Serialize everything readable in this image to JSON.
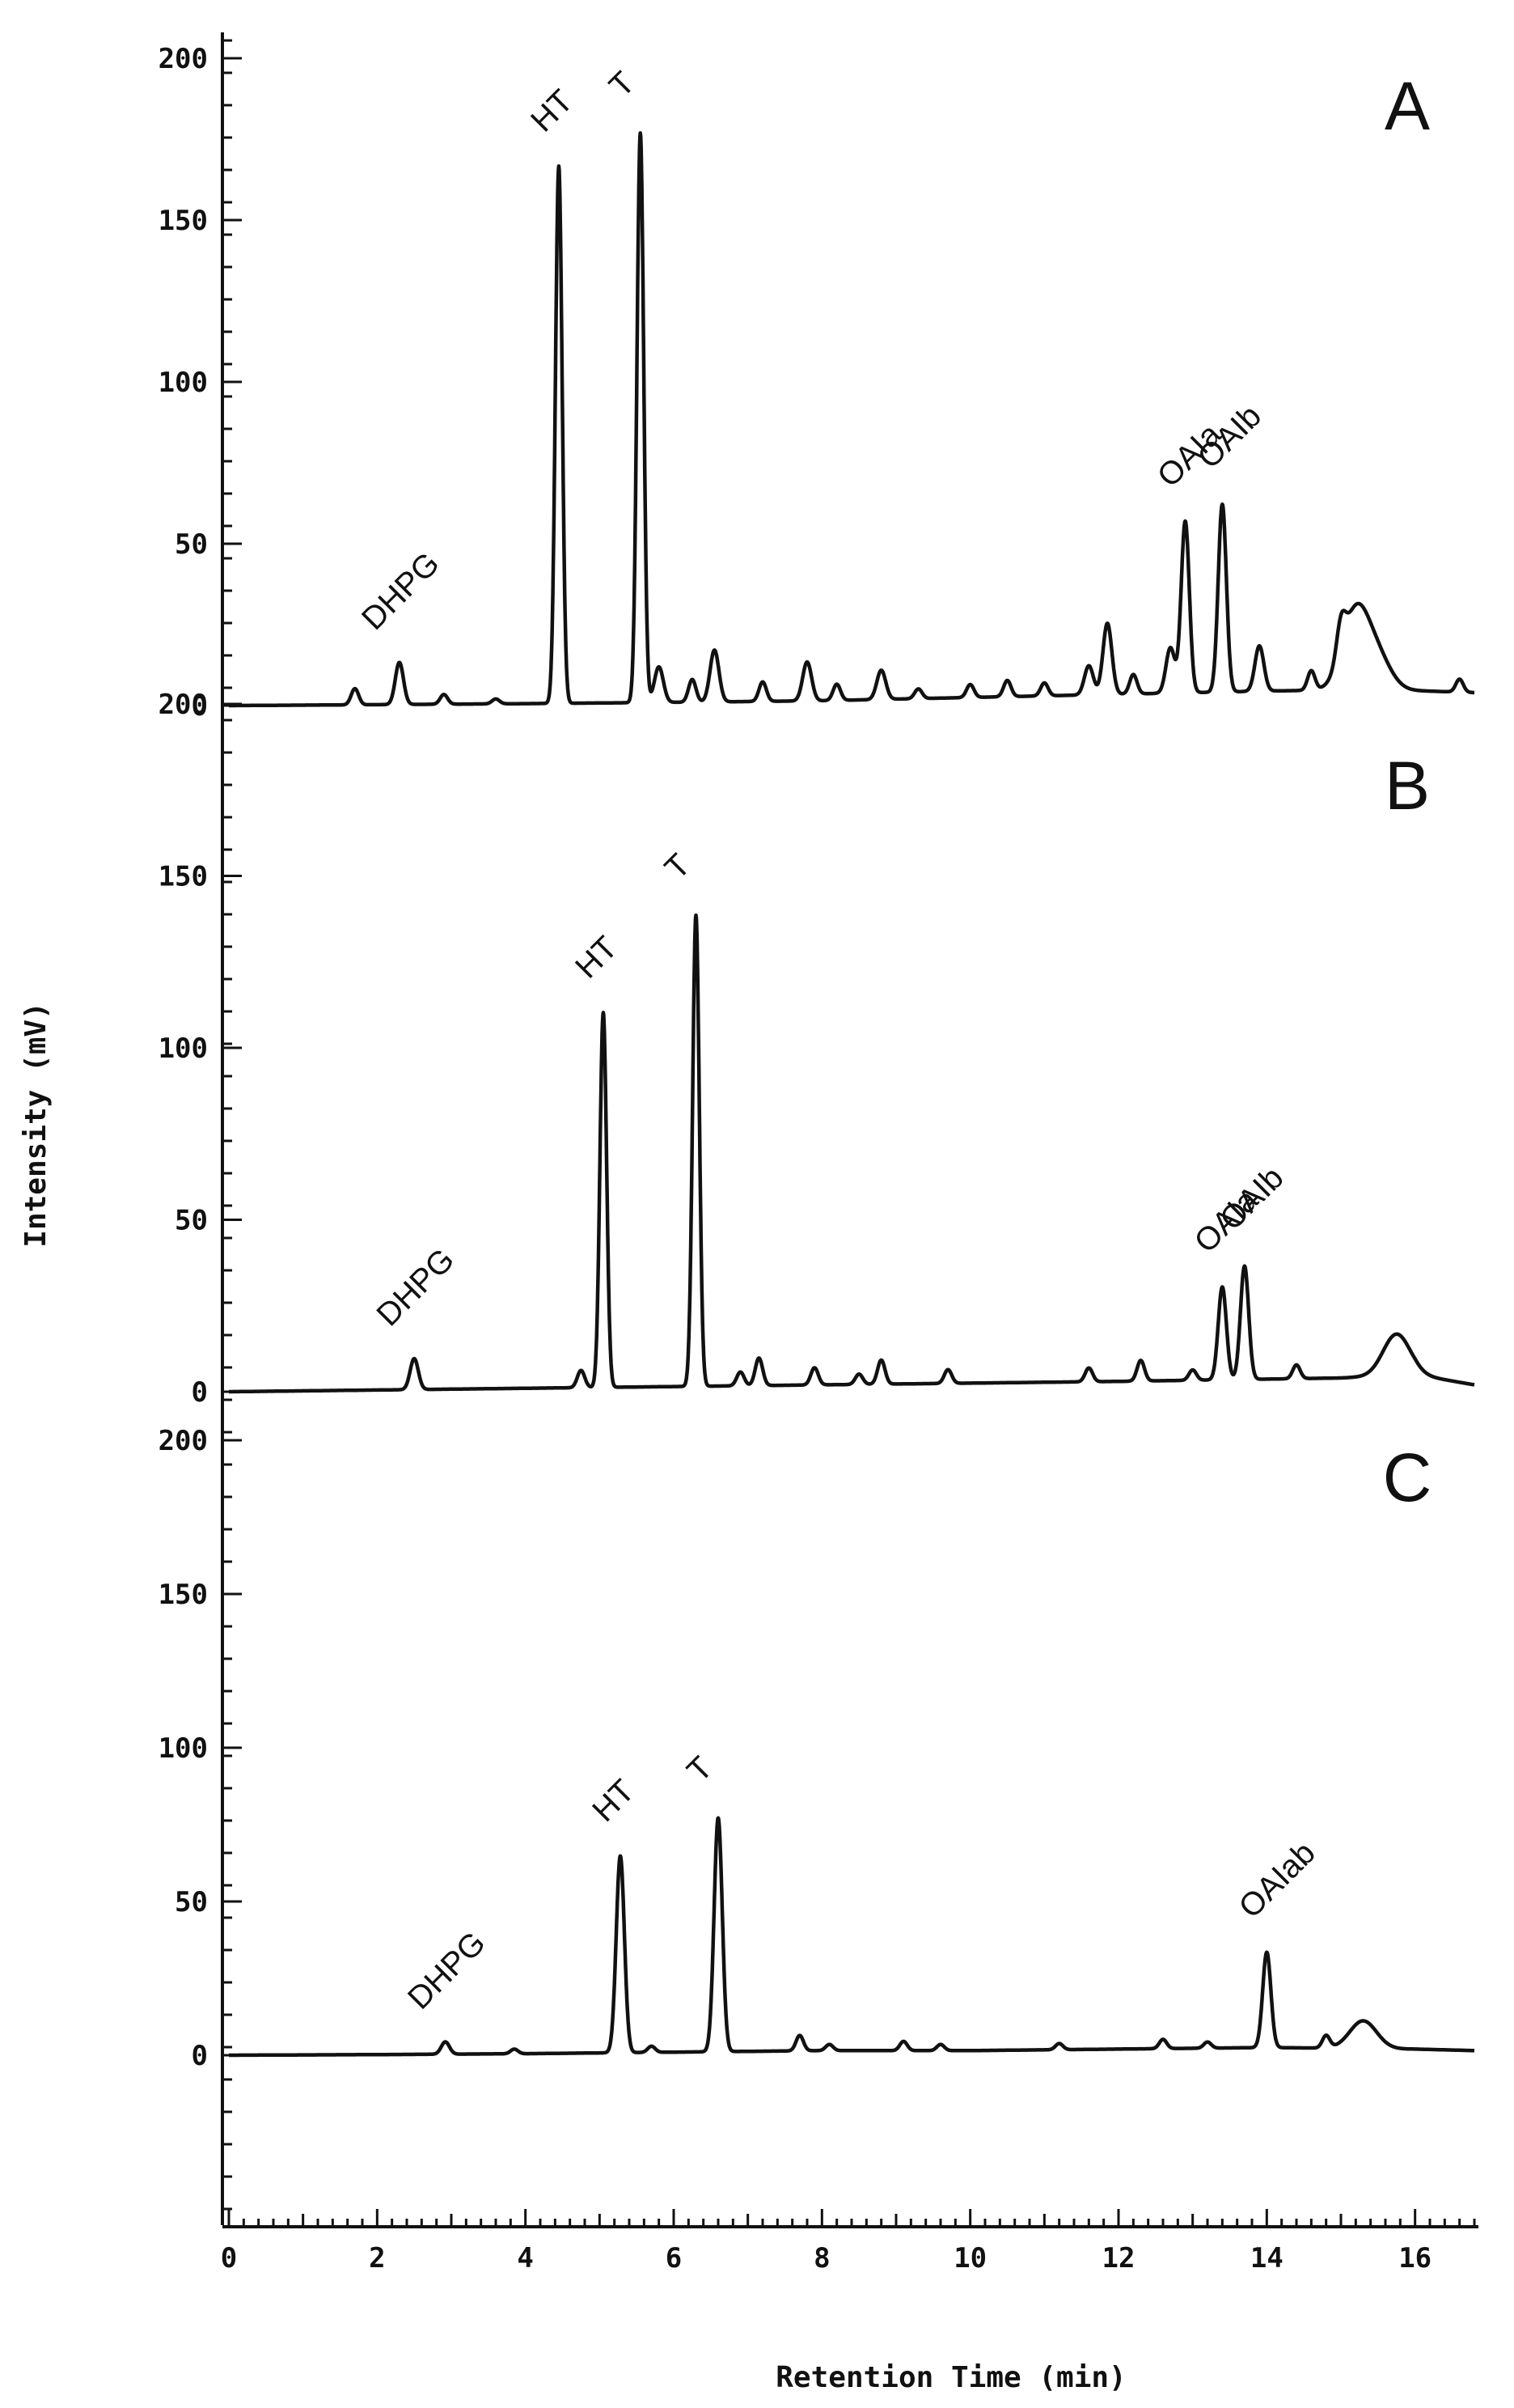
{
  "chart_data": {
    "type": "line",
    "xlabel": "Retention Time (min)",
    "ylabel": "Intensity (mV)",
    "xlim": [
      0,
      16.8
    ],
    "x_ticks": [
      "0",
      "2",
      "4",
      "6",
      "8",
      "10",
      "12",
      "14",
      "16"
    ],
    "y_ticks": [
      "0",
      "50",
      "100",
      "150",
      "200"
    ],
    "grid": false,
    "panels": [
      {
        "label": "A",
        "ylim": [
          0,
          200
        ],
        "baseline": [
          [
            0,
            0
          ],
          [
            1.5,
            0.2
          ],
          [
            4,
            0.6
          ],
          [
            6,
            1
          ],
          [
            8,
            1.5
          ],
          [
            10,
            2.5
          ],
          [
            12,
            3.5
          ],
          [
            14,
            4.5
          ],
          [
            15.5,
            5
          ],
          [
            16.8,
            4
          ]
        ],
        "peaks": [
          {
            "name": "DHPG",
            "rt": 2.3,
            "height": 13
          },
          {
            "name": "HT",
            "rt": 4.45,
            "height": 166
          },
          {
            "name": "T",
            "rt": 5.55,
            "height": 176
          },
          {
            "name": "OAIa",
            "rt": 12.9,
            "height": 53
          },
          {
            "name": "OAIb",
            "rt": 13.4,
            "height": 58
          }
        ],
        "minor_peaks": [
          [
            1.7,
            5
          ],
          [
            2.9,
            3
          ],
          [
            3.6,
            1.5
          ],
          [
            5.8,
            11
          ],
          [
            6.25,
            7
          ],
          [
            6.55,
            16
          ],
          [
            7.2,
            6
          ],
          [
            7.8,
            12
          ],
          [
            8.2,
            5
          ],
          [
            8.8,
            9
          ],
          [
            9.3,
            3
          ],
          [
            10.0,
            4
          ],
          [
            10.5,
            5
          ],
          [
            11.0,
            4
          ],
          [
            11.6,
            9
          ],
          [
            11.85,
            22
          ],
          [
            12.2,
            6
          ],
          [
            12.7,
            14
          ],
          [
            13.9,
            14
          ],
          [
            14.6,
            6
          ],
          [
            15.0,
            10
          ],
          [
            15.2,
            24
          ],
          [
            15.5,
            9
          ],
          [
            16.6,
            4
          ]
        ]
      },
      {
        "label": "B",
        "ylim": [
          0,
          200
        ],
        "baseline": [
          [
            0,
            0
          ],
          [
            1.2,
            0.3
          ],
          [
            4,
            1
          ],
          [
            6,
            1.5
          ],
          [
            8,
            2
          ],
          [
            10,
            2.5
          ],
          [
            12,
            3
          ],
          [
            13.5,
            3.5
          ],
          [
            15,
            4
          ],
          [
            16,
            5
          ],
          [
            16.8,
            2
          ]
        ],
        "peaks": [
          {
            "name": "DHPG",
            "rt": 2.5,
            "height": 9
          },
          {
            "name": "HT",
            "rt": 5.05,
            "height": 109
          },
          {
            "name": "T",
            "rt": 6.3,
            "height": 137
          },
          {
            "name": "OAIa",
            "rt": 13.4,
            "height": 27
          },
          {
            "name": "OAIb",
            "rt": 13.7,
            "height": 33
          }
        ],
        "minor_peaks": [
          [
            4.75,
            5
          ],
          [
            6.9,
            4
          ],
          [
            7.15,
            8
          ],
          [
            7.9,
            5
          ],
          [
            8.5,
            3
          ],
          [
            8.8,
            7
          ],
          [
            9.7,
            4
          ],
          [
            11.6,
            4
          ],
          [
            12.3,
            6
          ],
          [
            13.0,
            3
          ],
          [
            14.4,
            4
          ],
          [
            15.75,
            12
          ]
        ]
      },
      {
        "label": "C",
        "ylim": [
          0,
          200
        ],
        "baseline": [
          [
            0,
            0
          ],
          [
            2,
            0.2
          ],
          [
            4,
            0.5
          ],
          [
            6,
            1
          ],
          [
            8,
            1.5
          ],
          [
            10,
            1.5
          ],
          [
            12,
            2
          ],
          [
            14,
            2.5
          ],
          [
            16,
            2
          ],
          [
            16.8,
            1.5
          ]
        ],
        "peaks": [
          {
            "name": "DHPG",
            "rt": 2.92,
            "height": 4
          },
          {
            "name": "HT",
            "rt": 5.28,
            "height": 64
          },
          {
            "name": "T",
            "rt": 6.6,
            "height": 76
          },
          {
            "name": "OAIab",
            "rt": 14.0,
            "height": 31
          }
        ],
        "minor_peaks": [
          [
            3.85,
            1.5
          ],
          [
            5.7,
            2
          ],
          [
            7.7,
            5
          ],
          [
            8.1,
            2
          ],
          [
            9.1,
            3
          ],
          [
            9.6,
            2
          ],
          [
            11.2,
            2
          ],
          [
            12.6,
            3
          ],
          [
            13.2,
            2
          ],
          [
            14.8,
            4
          ],
          [
            15.3,
            9
          ]
        ]
      }
    ]
  }
}
